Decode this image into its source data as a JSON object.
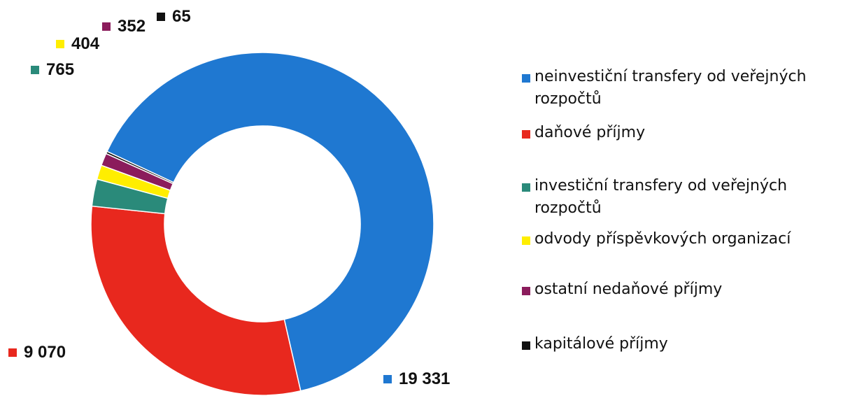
{
  "chart_data": {
    "type": "donut",
    "series": [
      {
        "name": "neinvestiční transfery od veřejných rozpočtů",
        "value": 19331,
        "label": "19 331",
        "color": "#1f78d1"
      },
      {
        "name": "daňové příjmy",
        "value": 9070,
        "label": "9 070",
        "color": "#e8281e"
      },
      {
        "name": "investiční transfery od veřejných rozpočtů",
        "value": 765,
        "label": "765",
        "color": "#2a8a7a"
      },
      {
        "name": "odvody příspěvkových organizací",
        "value": 404,
        "label": "404",
        "color": "#ffee00"
      },
      {
        "name": "ostatní nedaňové příjmy",
        "value": 352,
        "label": "352",
        "color": "#8b1c5c"
      },
      {
        "name": "kapitálové příjmy",
        "value": 65,
        "label": "65",
        "color": "#111111"
      }
    ],
    "legend_position": "right"
  }
}
